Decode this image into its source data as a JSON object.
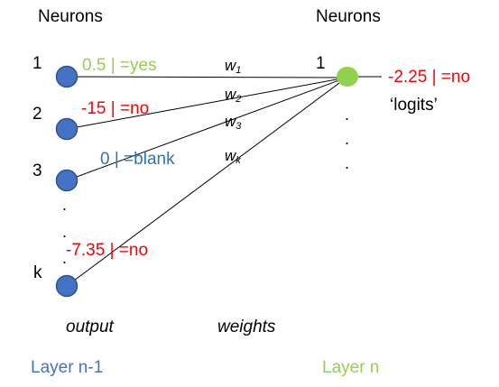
{
  "headers": {
    "left": "Neurons",
    "right": "Neurons"
  },
  "input_neurons": [
    {
      "index": "1",
      "value": "0.5 | =yes",
      "value_color": "#92d050"
    },
    {
      "index": "2",
      "value": "-15 | =no",
      "value_color": "#ff0000"
    },
    {
      "index": "3",
      "value": "0 | =blank",
      "value_color": "#2e75b6"
    },
    {
      "index": "k",
      "value": "-7.35 | =no",
      "value_color": "#ff0000"
    }
  ],
  "output_neuron": {
    "index": "1",
    "value": "-2.25 | =no",
    "value_color": "#ff0000",
    "note": "‘logits’"
  },
  "weights": [
    {
      "base": "w",
      "sub": "1"
    },
    {
      "base": "w",
      "sub": "2"
    },
    {
      "base": "w",
      "sub": "3"
    },
    {
      "base": "w",
      "sub": "k"
    }
  ],
  "ellipsis_dot": ".",
  "captions": {
    "output": "output",
    "weights": "weights"
  },
  "layers": {
    "left": "Layer n-1",
    "right": "Layer n"
  },
  "colors": {
    "input_node_fill": "#4472c4",
    "input_node_stroke": "#2f528f",
    "output_node_fill": "#92d050",
    "layer_left": "#4472c4",
    "layer_right": "#92d050"
  }
}
